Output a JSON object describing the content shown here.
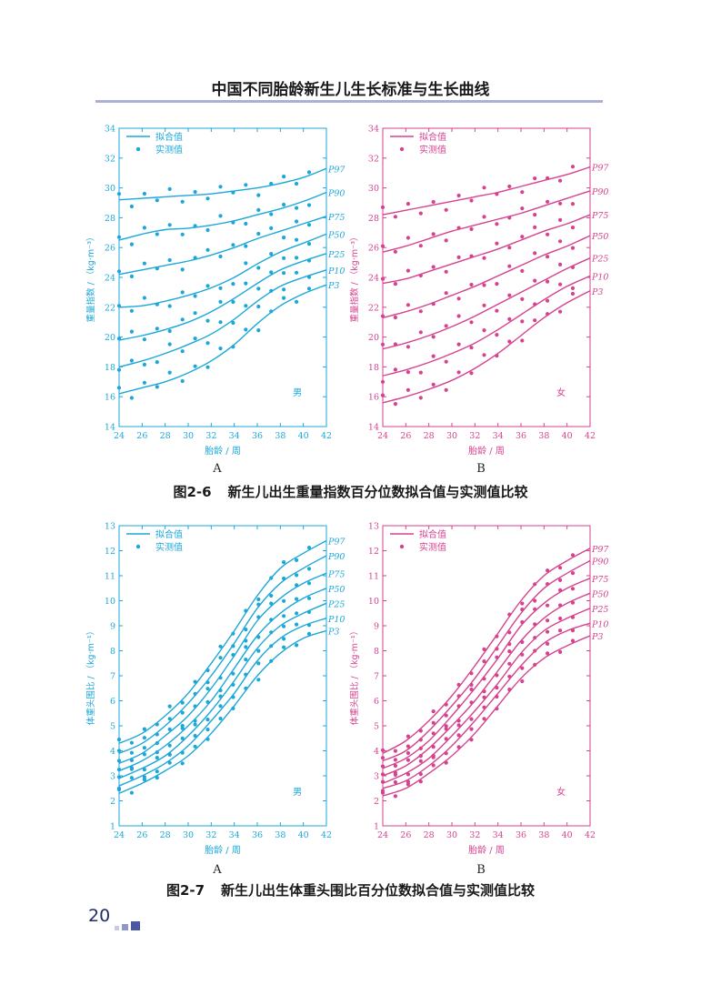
{
  "page": {
    "header_title": "中国不同胎龄新生儿生长标准与生长曲线",
    "page_number": "20",
    "colors": {
      "boy": "#1ba7d9",
      "girl": "#d6428e",
      "rule": "#a9b1d6",
      "footer": "#1f2b6a"
    }
  },
  "figures": [
    {
      "number": "图2-6",
      "title": "新生儿出生重量指数百分位数拟合值与实测值比较",
      "labels": [
        "A",
        "B"
      ]
    },
    {
      "number": "图2-7",
      "title": "新生儿出生体重头围比百分位数拟合值与实测值比较",
      "labels": [
        "A",
        "B"
      ]
    }
  ],
  "chart_data": [
    {
      "type": "line",
      "panel": "A",
      "sex_label": "男",
      "color": "#1ba7d9",
      "legend": [
        "拟合值",
        "实测值"
      ],
      "xlabel": "胎龄 / 周",
      "ylabel": "重量指数 / （kg·m⁻³）",
      "xlim": [
        24,
        42
      ],
      "ylim": [
        14,
        34
      ],
      "xticks": [
        24,
        26,
        28,
        30,
        32,
        34,
        36,
        38,
        40,
        42
      ],
      "yticks": [
        14,
        16,
        18,
        20,
        22,
        24,
        26,
        28,
        30,
        32,
        34
      ],
      "x": [
        24,
        26,
        28,
        30,
        32,
        34,
        36,
        38,
        40,
        42
      ],
      "series": [
        {
          "name": "P97",
          "values": [
            29.2,
            29.3,
            29.4,
            29.5,
            29.6,
            29.8,
            30.0,
            30.3,
            30.7,
            31.3
          ]
        },
        {
          "name": "P90",
          "values": [
            26.5,
            26.9,
            27.2,
            27.3,
            27.5,
            27.8,
            28.2,
            28.6,
            29.1,
            29.7
          ]
        },
        {
          "name": "P75",
          "values": [
            24.2,
            24.5,
            24.8,
            25.1,
            25.5,
            26.0,
            26.6,
            27.1,
            27.6,
            28.1
          ]
        },
        {
          "name": "P50",
          "values": [
            22.0,
            22.1,
            22.4,
            22.8,
            23.3,
            24.0,
            24.9,
            25.7,
            26.3,
            26.9
          ]
        },
        {
          "name": "P25",
          "values": [
            19.8,
            20.1,
            20.5,
            21.0,
            21.7,
            22.6,
            23.6,
            24.5,
            25.1,
            25.6
          ]
        },
        {
          "name": "P10",
          "values": [
            18.0,
            18.4,
            18.9,
            19.5,
            20.2,
            21.2,
            22.4,
            23.4,
            24.0,
            24.5
          ]
        },
        {
          "name": "P3",
          "values": [
            16.2,
            16.6,
            17.0,
            17.6,
            18.4,
            19.5,
            20.9,
            22.1,
            22.9,
            23.5
          ]
        }
      ],
      "scatter_offsets": [
        0.4,
        -0.5,
        0.3,
        -0.2,
        0.5,
        -0.4,
        0.2,
        -0.3,
        0.4,
        -0.1,
        0.3,
        -0.5,
        0.1,
        0.4,
        -0.3,
        0.2,
        -0.2,
        0.3
      ]
    },
    {
      "type": "line",
      "panel": "B",
      "sex_label": "女",
      "color": "#d6428e",
      "legend": [
        "拟合值",
        "实测值"
      ],
      "xlabel": "胎龄 / 周",
      "ylabel": "重量指数 / （kg·m⁻³）",
      "xlim": [
        24,
        42
      ],
      "ylim": [
        14,
        34
      ],
      "xticks": [
        24,
        26,
        28,
        30,
        32,
        34,
        36,
        38,
        40,
        42
      ],
      "yticks": [
        14,
        16,
        18,
        20,
        22,
        24,
        26,
        28,
        30,
        32,
        34
      ],
      "x": [
        24,
        26,
        28,
        30,
        32,
        34,
        36,
        38,
        40,
        42
      ],
      "series": [
        {
          "name": "P97",
          "values": [
            28.2,
            28.5,
            28.8,
            29.1,
            29.4,
            29.7,
            30.1,
            30.5,
            30.9,
            31.4
          ]
        },
        {
          "name": "P90",
          "values": [
            25.7,
            26.1,
            26.6,
            27.1,
            27.5,
            27.9,
            28.3,
            28.8,
            29.3,
            29.8
          ]
        },
        {
          "name": "P75",
          "values": [
            23.6,
            23.9,
            24.4,
            24.9,
            25.4,
            25.9,
            26.5,
            27.1,
            27.6,
            28.2
          ]
        },
        {
          "name": "P50",
          "values": [
            21.3,
            21.7,
            22.2,
            22.8,
            23.4,
            24.1,
            24.8,
            25.5,
            26.1,
            26.8
          ]
        },
        {
          "name": "P25",
          "values": [
            19.2,
            19.6,
            20.1,
            20.7,
            21.4,
            22.2,
            23.0,
            23.8,
            24.6,
            25.3
          ]
        },
        {
          "name": "P10",
          "values": [
            17.4,
            17.8,
            18.3,
            18.9,
            19.6,
            20.5,
            21.5,
            22.5,
            23.4,
            24.1
          ]
        },
        {
          "name": "P3",
          "values": [
            15.6,
            16.0,
            16.5,
            17.1,
            17.9,
            18.9,
            20.1,
            21.3,
            22.3,
            23.1
          ]
        }
      ],
      "scatter_offsets": [
        0.5,
        -0.3,
        0.4,
        -0.4,
        0.2,
        -0.5,
        0.3,
        -0.2,
        0.5,
        -0.1,
        0.2,
        -0.4,
        0.3,
        0.1,
        -0.3,
        0.4,
        -0.2,
        0.2
      ]
    },
    {
      "type": "line",
      "panel": "A",
      "sex_label": "男",
      "color": "#1ba7d9",
      "legend": [
        "拟合值",
        "实测值"
      ],
      "xlabel": "胎龄 / 周",
      "ylabel": "体重头围比 / （kg·m⁻¹）",
      "xlim": [
        24,
        42
      ],
      "ylim": [
        1,
        13
      ],
      "xticks": [
        24,
        26,
        28,
        30,
        32,
        34,
        36,
        38,
        40,
        42
      ],
      "yticks": [
        1,
        2,
        3,
        4,
        5,
        6,
        7,
        8,
        9,
        10,
        11,
        12,
        13
      ],
      "x": [
        24,
        26,
        28,
        30,
        32,
        34,
        36,
        38,
        40,
        42
      ],
      "series": [
        {
          "name": "P97",
          "values": [
            4.3,
            4.7,
            5.4,
            6.3,
            7.5,
            8.8,
            10.2,
            11.3,
            11.9,
            12.4
          ]
        },
        {
          "name": "P90",
          "values": [
            3.9,
            4.3,
            5.0,
            5.9,
            7.0,
            8.3,
            9.7,
            10.7,
            11.3,
            11.8
          ]
        },
        {
          "name": "P75",
          "values": [
            3.5,
            3.9,
            4.6,
            5.4,
            6.5,
            7.8,
            9.2,
            10.1,
            10.7,
            11.1
          ]
        },
        {
          "name": "P50",
          "values": [
            3.2,
            3.6,
            4.2,
            5.0,
            6.0,
            7.3,
            8.6,
            9.5,
            10.1,
            10.5
          ]
        },
        {
          "name": "P25",
          "values": [
            2.9,
            3.3,
            3.8,
            4.6,
            5.6,
            6.8,
            8.1,
            9.0,
            9.5,
            9.9
          ]
        },
        {
          "name": "P10",
          "values": [
            2.6,
            3.0,
            3.5,
            4.2,
            5.2,
            6.3,
            7.6,
            8.5,
            9.0,
            9.3
          ]
        },
        {
          "name": "P3",
          "values": [
            2.3,
            2.7,
            3.2,
            3.8,
            4.7,
            5.8,
            7.0,
            7.9,
            8.5,
            8.8
          ]
        }
      ],
      "scatter_offsets": [
        0.15,
        -0.2,
        0.1,
        -0.1,
        0.2,
        -0.15,
        0.1,
        -0.1,
        0.15,
        -0.05,
        0.1,
        -0.2,
        0.05,
        0.15,
        -0.1,
        0.1,
        -0.1,
        0.1
      ]
    },
    {
      "type": "line",
      "panel": "B",
      "sex_label": "女",
      "color": "#d6428e",
      "legend": [
        "拟合值",
        "实测值"
      ],
      "xlabel": "胎龄 / 周",
      "ylabel": "体重头围比 / （kg·m⁻¹）",
      "xlim": [
        24,
        42
      ],
      "ylim": [
        1,
        13
      ],
      "xticks": [
        24,
        26,
        28,
        30,
        32,
        34,
        36,
        38,
        40,
        42
      ],
      "yticks": [
        1,
        2,
        3,
        4,
        5,
        6,
        7,
        8,
        9,
        10,
        11,
        12,
        13
      ],
      "x": [
        24,
        26,
        28,
        30,
        32,
        34,
        36,
        38,
        40,
        42
      ],
      "series": [
        {
          "name": "P97",
          "values": [
            3.9,
            4.4,
            5.2,
            6.2,
            7.4,
            8.7,
            10.0,
            11.0,
            11.6,
            12.1
          ]
        },
        {
          "name": "P90",
          "values": [
            3.6,
            4.0,
            4.8,
            5.8,
            6.9,
            8.2,
            9.5,
            10.5,
            11.1,
            11.6
          ]
        },
        {
          "name": "P75",
          "values": [
            3.3,
            3.7,
            4.4,
            5.4,
            6.5,
            7.7,
            9.0,
            9.9,
            10.5,
            10.9
          ]
        },
        {
          "name": "P50",
          "values": [
            3.0,
            3.4,
            4.1,
            5.0,
            6.0,
            7.2,
            8.4,
            9.3,
            9.9,
            10.3
          ]
        },
        {
          "name": "P25",
          "values": [
            2.7,
            3.1,
            3.7,
            4.6,
            5.6,
            6.7,
            7.9,
            8.8,
            9.3,
            9.7
          ]
        },
        {
          "name": "P10",
          "values": [
            2.5,
            2.8,
            3.4,
            4.2,
            5.2,
            6.3,
            7.4,
            8.3,
            8.8,
            9.1
          ]
        },
        {
          "name": "P3",
          "values": [
            2.2,
            2.5,
            3.1,
            3.8,
            4.7,
            5.8,
            6.9,
            7.7,
            8.2,
            8.6
          ]
        }
      ],
      "scatter_offsets": [
        0.12,
        -0.18,
        0.1,
        -0.12,
        0.18,
        -0.1,
        0.08,
        -0.12,
        0.14,
        -0.06,
        0.1,
        -0.16,
        0.06,
        0.12,
        -0.1,
        0.1,
        -0.08,
        0.1
      ]
    }
  ]
}
